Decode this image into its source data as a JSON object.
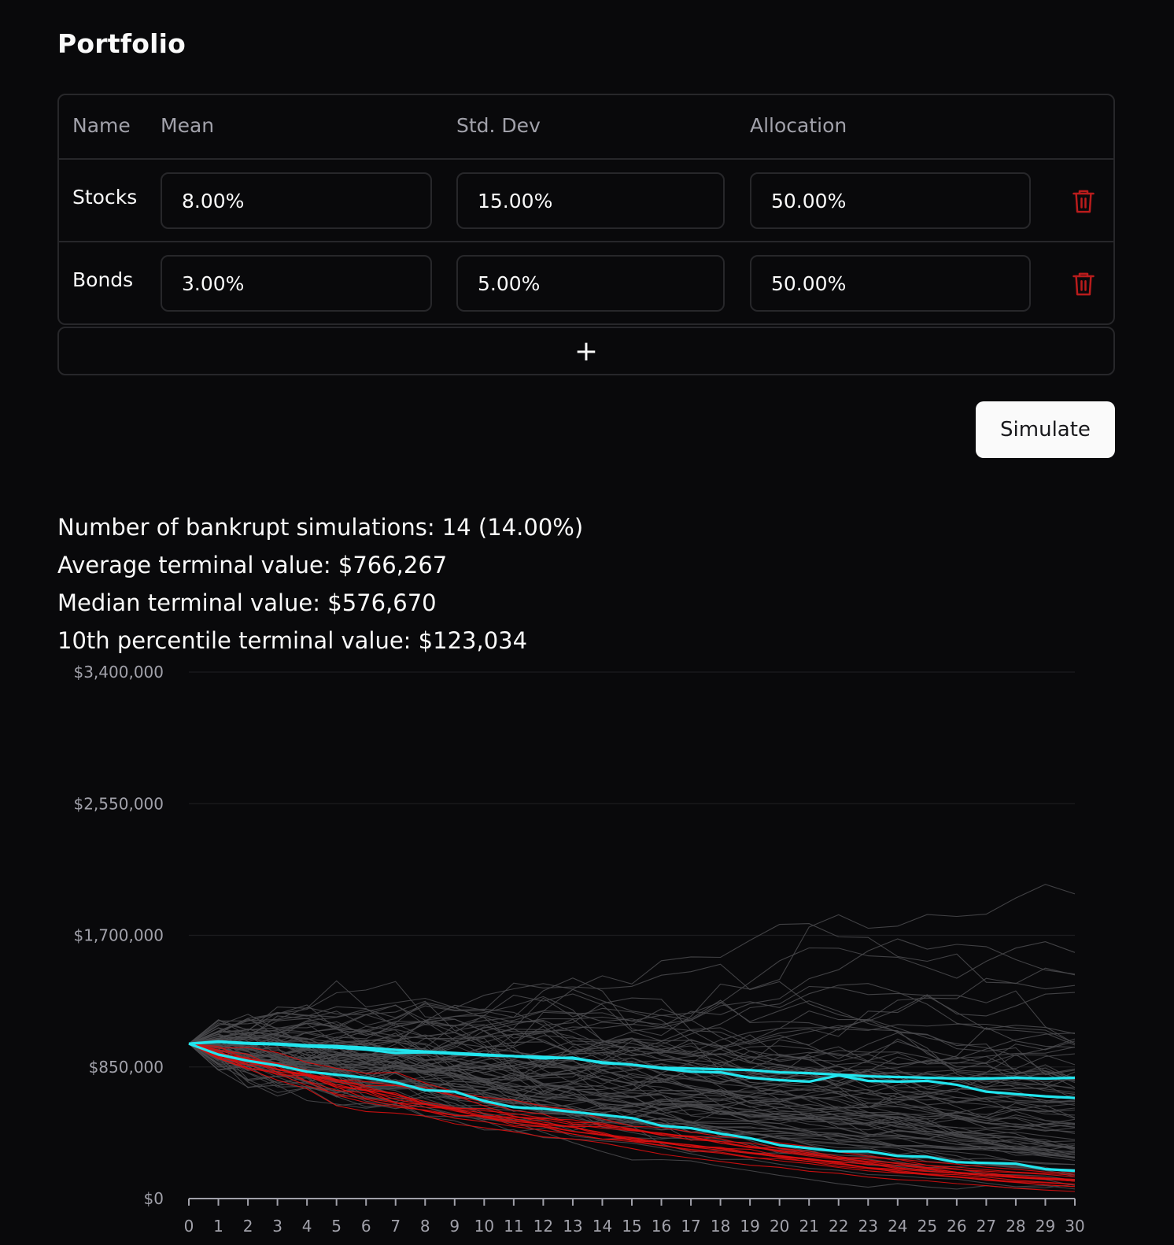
{
  "page": {
    "title": "Portfolio"
  },
  "table": {
    "headers": [
      "Name",
      "Mean",
      "Std. Dev",
      "Allocation"
    ],
    "rows": [
      {
        "name": "Stocks",
        "mean": "8.00%",
        "std_dev": "15.00%",
        "allocation": "50.00%"
      },
      {
        "name": "Bonds",
        "mean": "3.00%",
        "std_dev": "5.00%",
        "allocation": "50.00%"
      }
    ],
    "delete_icon": "trash-icon",
    "delete_color": "#b91c1c",
    "add_label": "+"
  },
  "actions": {
    "simulate_label": "Simulate"
  },
  "stats": [
    "Number of bankrupt simulations: 14 (14.00%)",
    "Average terminal value: $766,267",
    "Median terminal value: $576,670",
    "10th percentile terminal value: $123,034"
  ],
  "chart_data": {
    "type": "line",
    "x": [
      0,
      1,
      2,
      3,
      4,
      5,
      6,
      7,
      8,
      9,
      10,
      11,
      12,
      13,
      14,
      15,
      16,
      17,
      18,
      19,
      20,
      21,
      22,
      23,
      24,
      25,
      26,
      27,
      28,
      29,
      30
    ],
    "x_tick_labels": [
      "0",
      "1",
      "2",
      "3",
      "4",
      "5",
      "6",
      "7",
      "8",
      "9",
      "10",
      "11",
      "12",
      "13",
      "14",
      "15",
      "16",
      "17",
      "18",
      "19",
      "20",
      "21",
      "22",
      "23",
      "24",
      "25",
      "26",
      "27",
      "28",
      "29",
      "30"
    ],
    "y_tick_labels": [
      "$0",
      "$850,000",
      "$1,700,000",
      "$2,550,000",
      "$3,400,000"
    ],
    "y_ticks": [
      0,
      850000,
      1700000,
      2550000,
      3400000
    ],
    "xlim": [
      0,
      30
    ],
    "ylim": [
      0,
      3400000
    ],
    "grid": "horizontal",
    "colors": {
      "simulation": "#4b4b4f",
      "bankrupt": "#dc1010",
      "percentile": "#22e5ee"
    },
    "simulations_total": 100,
    "bankrupt_count": 14,
    "highlighted_series": [
      {
        "values": [
          1000000,
          1015000,
          1005000,
          1000000,
          990000,
          985000,
          975000,
          960000,
          950000,
          940000,
          930000,
          920000,
          915000,
          905000,
          880000,
          865000,
          845000,
          840000,
          835000,
          830000,
          815000,
          810000,
          800000,
          790000,
          785000,
          780000,
          775000,
          775000,
          780000,
          775000,
          780000
        ]
      },
      {
        "values": [
          1000000,
          1012000,
          1000000,
          995000,
          982000,
          975000,
          962000,
          940000,
          945000,
          935000,
          925000,
          920000,
          905000,
          910000,
          875000,
          865000,
          840000,
          820000,
          815000,
          780000,
          765000,
          755000,
          795000,
          760000,
          755000,
          760000,
          735000,
          690000,
          675000,
          660000,
          650000
        ]
      },
      {
        "values": [
          1000000,
          930000,
          890000,
          860000,
          820000,
          800000,
          780000,
          750000,
          700000,
          690000,
          630000,
          590000,
          580000,
          560000,
          540000,
          520000,
          470000,
          455000,
          420000,
          390000,
          345000,
          325000,
          305000,
          305000,
          275000,
          270000,
          235000,
          230000,
          225000,
          190000,
          180000
        ]
      }
    ]
  }
}
